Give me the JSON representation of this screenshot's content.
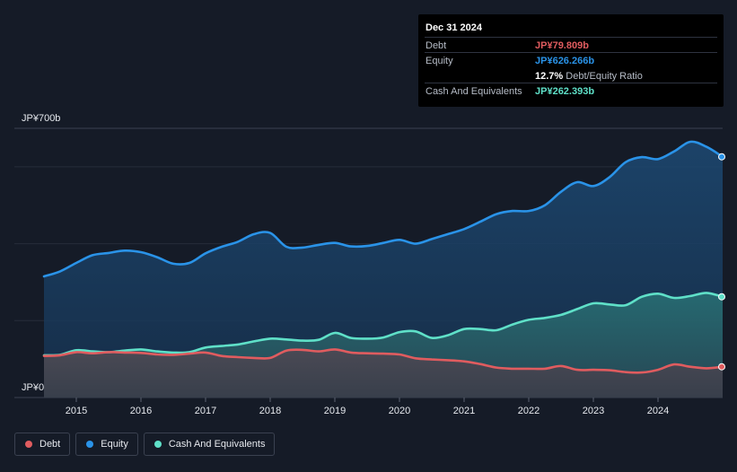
{
  "tooltip": {
    "date": "Dec 31 2024",
    "debt_label": "Debt",
    "debt_value": "JP¥79.809b",
    "equity_label": "Equity",
    "equity_value": "JP¥626.266b",
    "ratio_value": "12.7%",
    "ratio_label": "Debt/Equity Ratio",
    "cash_label": "Cash And Equivalents",
    "cash_value": "JP¥262.393b"
  },
  "legend": {
    "debt": "Debt",
    "equity": "Equity",
    "cash": "Cash And Equivalents"
  },
  "colors": {
    "debt": "#e05c5f",
    "equity": "#2a93e8",
    "cash": "#5fe0c8"
  },
  "chart_data": {
    "type": "area",
    "title": "",
    "xlabel": "",
    "ylabel": "",
    "y_axis_top_label": "JP¥700b",
    "y_axis_bottom_label": "JP¥0",
    "ylim": [
      0,
      700
    ],
    "xlim": [
      2014.5,
      2025.0
    ],
    "x_ticks": [
      {
        "value": 2015,
        "label": "2015"
      },
      {
        "value": 2016,
        "label": "2016"
      },
      {
        "value": 2017,
        "label": "2017"
      },
      {
        "value": 2018,
        "label": "2018"
      },
      {
        "value": 2019,
        "label": "2019"
      },
      {
        "value": 2020,
        "label": "2020"
      },
      {
        "value": 2021,
        "label": "2021"
      },
      {
        "value": 2022,
        "label": "2022"
      },
      {
        "value": 2023,
        "label": "2023"
      },
      {
        "value": 2024,
        "label": "2024"
      }
    ],
    "gridlines": [
      200,
      400,
      600,
      700
    ],
    "series": [
      {
        "name": "Equity",
        "key": "equity",
        "x": [
          2014.5,
          2014.75,
          2015.0,
          2015.25,
          2015.5,
          2015.75,
          2016.0,
          2016.25,
          2016.5,
          2016.75,
          2017.0,
          2017.25,
          2017.5,
          2017.75,
          2018.0,
          2018.25,
          2018.5,
          2018.75,
          2019.0,
          2019.25,
          2019.5,
          2019.75,
          2020.0,
          2020.25,
          2020.5,
          2020.75,
          2021.0,
          2021.25,
          2021.5,
          2021.75,
          2022.0,
          2022.25,
          2022.5,
          2022.75,
          2023.0,
          2023.25,
          2023.5,
          2023.75,
          2024.0,
          2024.25,
          2024.5,
          2024.75,
          2025.0
        ],
        "values": [
          315,
          328,
          350,
          370,
          376,
          382,
          378,
          365,
          348,
          350,
          375,
          392,
          405,
          425,
          428,
          392,
          390,
          397,
          402,
          393,
          394,
          402,
          410,
          400,
          412,
          425,
          438,
          457,
          477,
          485,
          485,
          500,
          535,
          560,
          550,
          573,
          612,
          625,
          620,
          640,
          665,
          652,
          626
        ]
      },
      {
        "name": "Cash And Equivalents",
        "key": "cash",
        "x": [
          2014.5,
          2014.75,
          2015.0,
          2015.25,
          2015.5,
          2015.75,
          2016.0,
          2016.25,
          2016.5,
          2016.75,
          2017.0,
          2017.25,
          2017.5,
          2017.75,
          2018.0,
          2018.25,
          2018.5,
          2018.75,
          2019.0,
          2019.25,
          2019.5,
          2019.75,
          2020.0,
          2020.25,
          2020.5,
          2020.75,
          2021.0,
          2021.25,
          2021.5,
          2021.75,
          2022.0,
          2022.25,
          2022.5,
          2022.75,
          2023.0,
          2023.25,
          2023.5,
          2023.75,
          2024.0,
          2024.25,
          2024.5,
          2024.75,
          2025.0
        ],
        "values": [
          110,
          111,
          123,
          120,
          118,
          122,
          125,
          120,
          117,
          118,
          130,
          134,
          138,
          146,
          153,
          151,
          148,
          150,
          168,
          155,
          153,
          156,
          170,
          172,
          155,
          162,
          178,
          178,
          175,
          190,
          202,
          207,
          215,
          230,
          245,
          242,
          240,
          262,
          270,
          259,
          264,
          272,
          262
        ]
      },
      {
        "name": "Debt",
        "key": "debt",
        "x": [
          2014.5,
          2014.75,
          2015.0,
          2015.25,
          2015.5,
          2015.75,
          2016.0,
          2016.25,
          2016.5,
          2016.75,
          2017.0,
          2017.25,
          2017.5,
          2017.75,
          2018.0,
          2018.25,
          2018.5,
          2018.75,
          2019.0,
          2019.25,
          2019.5,
          2019.75,
          2020.0,
          2020.25,
          2020.5,
          2020.75,
          2021.0,
          2021.25,
          2021.5,
          2021.75,
          2022.0,
          2022.25,
          2022.5,
          2022.75,
          2023.0,
          2023.25,
          2023.5,
          2023.75,
          2024.0,
          2024.25,
          2024.5,
          2024.75,
          2025.0
        ],
        "values": [
          108,
          110,
          118,
          115,
          118,
          117,
          116,
          112,
          111,
          114,
          117,
          108,
          105,
          103,
          103,
          122,
          124,
          120,
          125,
          117,
          115,
          114,
          112,
          102,
          99,
          97,
          94,
          87,
          78,
          75,
          75,
          75,
          82,
          72,
          72,
          71,
          66,
          65,
          72,
          86,
          80,
          76,
          80
        ]
      }
    ]
  }
}
